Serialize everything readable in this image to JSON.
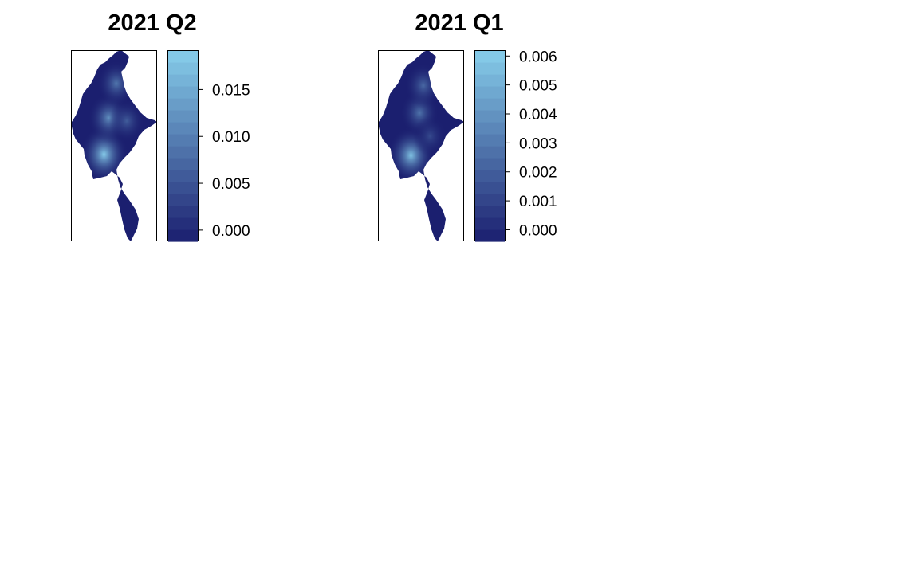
{
  "chart_data": [
    {
      "type": "heatmap",
      "subtype": "raster-map",
      "title": "2021 Q2",
      "region_shape": "myanmar",
      "palette": {
        "low": "#1b1f6f",
        "high": "#87ceeb"
      },
      "legend": {
        "placement": "right",
        "range": [
          -0.0012,
          0.0192
        ],
        "bands": 16,
        "ticks": [
          0.0,
          0.005,
          0.01,
          0.015
        ],
        "tick_labels": [
          "0.000",
          "0.005",
          "0.010",
          "0.015"
        ]
      },
      "hotspots": [
        {
          "lon": 95.6,
          "lat": 18.2,
          "value": 0.019
        },
        {
          "lon": 96.1,
          "lat": 21.8,
          "value": 0.012
        },
        {
          "lon": 96.9,
          "lat": 25.2,
          "value": 0.009
        },
        {
          "lon": 98.0,
          "lat": 21.5,
          "value": 0.006
        }
      ]
    },
    {
      "type": "heatmap",
      "subtype": "raster-map",
      "title": "2021 Q1",
      "region_shape": "myanmar",
      "palette": {
        "low": "#1b1f6f",
        "high": "#87ceeb"
      },
      "legend": {
        "placement": "right",
        "range": [
          -0.0004,
          0.0062
        ],
        "bands": 16,
        "ticks": [
          0.0,
          0.001,
          0.002,
          0.003,
          0.004,
          0.005,
          0.006
        ],
        "tick_labels": [
          "0.000",
          "0.001",
          "0.002",
          "0.003",
          "0.004",
          "0.005",
          "0.006"
        ]
      },
      "hotspots": [
        {
          "lon": 95.6,
          "lat": 18.1,
          "value": 0.0058
        },
        {
          "lon": 96.5,
          "lat": 22.3,
          "value": 0.0028
        },
        {
          "lon": 96.9,
          "lat": 25.0,
          "value": 0.0024
        },
        {
          "lon": 97.6,
          "lat": 20.0,
          "value": 0.0012
        }
      ]
    }
  ]
}
